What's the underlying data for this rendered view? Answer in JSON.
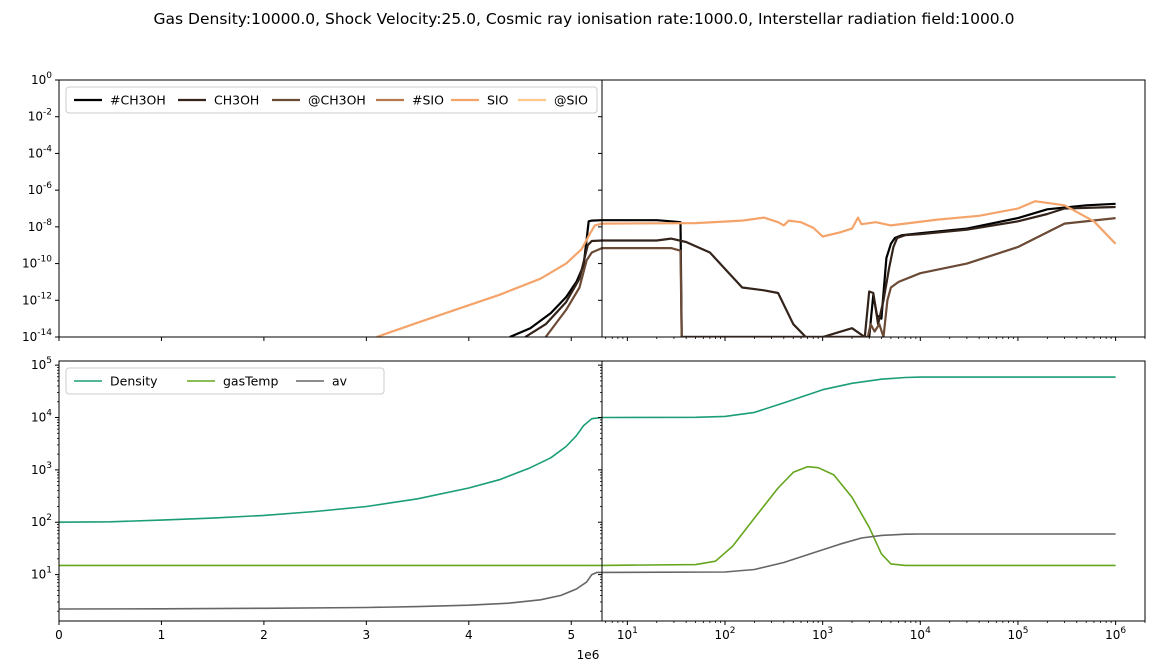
{
  "figure": {
    "title": "Gas Density:10000.0, Shock Velocity:25.0, Cosmic ray ionisation rate:1000.0, Interstellar radiation field:1000.0",
    "x_offset_label": "1e6"
  },
  "chart_data": [
    {
      "type": "line",
      "panel": "top-left",
      "xscale": "linear",
      "yscale": "log",
      "xlim": [
        0,
        5300000
      ],
      "ylim": [
        1e-14,
        1
      ],
      "x_ticks": [
        0,
        1000000,
        2000000,
        3000000,
        4000000,
        5000000
      ],
      "x_tick_labels": [],
      "y_ticks": [
        1e-14,
        1e-12,
        1e-10,
        1e-08,
        1e-06,
        0.0001,
        0.01,
        1
      ],
      "y_tick_labels": [
        "10^-14",
        "10^-12",
        "10^-10",
        "10^-8",
        "10^-6",
        "10^-4",
        "10^-2",
        "10^0"
      ],
      "legend": {
        "position": "upper-left",
        "ncol": 6
      },
      "series": [
        {
          "name": "#CH3OH",
          "color": "#000000",
          "width": 2.2,
          "points": [
            [
              4400000,
              1e-14
            ],
            [
              4600000,
              3e-14
            ],
            [
              4800000,
              2e-13
            ],
            [
              4950000,
              1.5e-12
            ],
            [
              5050000,
              1e-11
            ],
            [
              5120000,
              8e-11
            ],
            [
              5170000,
              2e-08
            ],
            [
              5200000,
              2.2e-08
            ],
            [
              5300000,
              2.3e-08
            ]
          ]
        },
        {
          "name": "CH3OH",
          "color": "#33231a",
          "width": 2.2,
          "points": [
            [
              4550000,
              1e-14
            ],
            [
              4750000,
              5e-14
            ],
            [
              4950000,
              8e-13
            ],
            [
              5080000,
              1.5e-11
            ],
            [
              5160000,
              1e-09
            ],
            [
              5200000,
              1.7e-09
            ],
            [
              5300000,
              1.8e-09
            ]
          ]
        },
        {
          "name": "@CH3OH",
          "color": "#6b4a36",
          "width": 2.2,
          "points": [
            [
              4750000,
              1e-14
            ],
            [
              4950000,
              3e-13
            ],
            [
              5080000,
              5e-12
            ],
            [
              5150000,
              1.5e-10
            ],
            [
              5200000,
              4e-10
            ],
            [
              5300000,
              7e-10
            ]
          ]
        },
        {
          "name": "#SIO",
          "color": "#b8774c",
          "width": 2.2,
          "points": []
        },
        {
          "name": "SIO",
          "color": "#f4a46b",
          "width": 2.2,
          "points": [
            [
              3100000,
              1e-14
            ],
            [
              3500000,
              6e-14
            ],
            [
              3900000,
              3.5e-13
            ],
            [
              4300000,
              2e-12
            ],
            [
              4700000,
              1.5e-11
            ],
            [
              4950000,
              1e-10
            ],
            [
              5100000,
              6e-10
            ],
            [
              5180000,
              4e-09
            ],
            [
              5230000,
              1.2e-08
            ],
            [
              5300000,
              1.5e-08
            ]
          ]
        },
        {
          "name": "@SIO",
          "color": "#fcc98a",
          "width": 2.2,
          "points": []
        }
      ]
    },
    {
      "type": "line",
      "panel": "top-right",
      "xscale": "log",
      "yscale": "log",
      "xlim": [
        5.5,
        2000000
      ],
      "ylim": [
        1e-14,
        1
      ],
      "x_ticks": [
        10,
        100,
        1000,
        10000,
        100000,
        1000000
      ],
      "x_tick_labels": [],
      "series": [
        {
          "name": "#CH3OH",
          "color": "#000000",
          "width": 2.2,
          "points": [
            [
              5.5,
              2.3e-08
            ],
            [
              20,
              2.3e-08
            ],
            [
              28,
              2e-08
            ],
            [
              35,
              1.8e-08
            ],
            [
              36,
              1e-14
            ],
            [
              3000,
              1e-14
            ],
            [
              3300,
              2e-12
            ],
            [
              3600,
              1.5e-13
            ],
            [
              4000,
              1e-13
            ],
            [
              4500,
              2e-10
            ],
            [
              5000,
              1.2e-09
            ],
            [
              5500,
              2.5e-09
            ],
            [
              6500,
              3.5e-09
            ],
            [
              10000,
              4.5e-09
            ],
            [
              30000,
              8e-09
            ],
            [
              100000,
              3e-08
            ],
            [
              200000,
              9e-08
            ],
            [
              500000,
              1.5e-07
            ],
            [
              1000000,
              1.8e-07
            ]
          ]
        },
        {
          "name": "CH3OH",
          "color": "#33231a",
          "width": 2.2,
          "points": [
            [
              5.5,
              1.8e-09
            ],
            [
              20,
              1.8e-09
            ],
            [
              28,
              2.3e-09
            ],
            [
              40,
              1.5e-09
            ],
            [
              70,
              4e-10
            ],
            [
              110,
              3e-11
            ],
            [
              150,
              5e-12
            ],
            [
              250,
              3.5e-12
            ],
            [
              350,
              2.5e-12
            ],
            [
              500,
              5e-14
            ],
            [
              700,
              8e-15
            ],
            [
              1000,
              1e-14
            ],
            [
              2000,
              3e-14
            ],
            [
              2700,
              1e-14
            ],
            [
              3000,
              3e-12
            ],
            [
              3300,
              2.5e-12
            ],
            [
              3700,
              5e-14
            ],
            [
              4200,
              1e-12
            ],
            [
              4800,
              6e-11
            ],
            [
              5300,
              8e-10
            ],
            [
              5800,
              2.5e-09
            ],
            [
              7000,
              3.5e-09
            ],
            [
              10000,
              4e-09
            ],
            [
              30000,
              7e-09
            ],
            [
              100000,
              2e-08
            ],
            [
              200000,
              5e-08
            ],
            [
              300000,
              1e-07
            ],
            [
              1000000,
              1.2e-07
            ]
          ]
        },
        {
          "name": "@CH3OH",
          "color": "#6b4a36",
          "width": 2.2,
          "points": [
            [
              5.5,
              7e-10
            ],
            [
              28,
              7e-10
            ],
            [
              35,
              5e-10
            ],
            [
              36,
              1e-14
            ],
            [
              2900,
              1e-14
            ],
            [
              3100,
              5e-14
            ],
            [
              3400,
              2e-14
            ],
            [
              3800,
              5e-14
            ],
            [
              4200,
              1e-14
            ],
            [
              4600,
              1e-12
            ],
            [
              5000,
              5e-12
            ],
            [
              6000,
              1e-11
            ],
            [
              10000,
              3e-11
            ],
            [
              30000,
              1e-10
            ],
            [
              100000,
              8e-10
            ],
            [
              300000,
              1.5e-08
            ],
            [
              1000000,
              3e-08
            ]
          ]
        },
        {
          "name": "SIO",
          "color": "#f4a46b",
          "width": 2.2,
          "points": [
            [
              5.5,
              1.5e-08
            ],
            [
              50,
              1.6e-08
            ],
            [
              150,
              2.2e-08
            ],
            [
              250,
              3.2e-08
            ],
            [
              350,
              1.8e-08
            ],
            [
              400,
              1.2e-08
            ],
            [
              450,
              2.2e-08
            ],
            [
              600,
              1.8e-08
            ],
            [
              800,
              9e-09
            ],
            [
              1000,
              3e-09
            ],
            [
              1500,
              5e-09
            ],
            [
              2000,
              8e-09
            ],
            [
              2300,
              3.2e-08
            ],
            [
              2500,
              1.4e-08
            ],
            [
              3500,
              1.8e-08
            ],
            [
              5000,
              1.2e-08
            ],
            [
              7000,
              1.5e-08
            ],
            [
              15000,
              2.5e-08
            ],
            [
              40000,
              4e-08
            ],
            [
              100000,
              1e-07
            ],
            [
              150000,
              2.5e-07
            ],
            [
              300000,
              1.5e-07
            ],
            [
              600000,
              2e-08
            ],
            [
              1000000,
              1.2e-09
            ]
          ]
        }
      ]
    },
    {
      "type": "line",
      "panel": "bottom-left",
      "xscale": "linear",
      "yscale": "log",
      "xlim": [
        0,
        5300000
      ],
      "ylim": [
        1.3,
        120000
      ],
      "x_ticks": [
        0,
        1000000,
        2000000,
        3000000,
        4000000,
        5000000
      ],
      "x_tick_labels": [
        "0",
        "1",
        "2",
        "3",
        "4",
        "5"
      ],
      "y_ticks": [
        10,
        100,
        1000,
        10000,
        100000
      ],
      "y_tick_labels": [
        "10^1",
        "10^2",
        "10^3",
        "10^4",
        "10^5"
      ],
      "legend": {
        "position": "upper-left",
        "ncol": 3
      },
      "series": [
        {
          "name": "Density",
          "color": "#1b9e77",
          "width": 1.6,
          "points": [
            [
              0,
              100
            ],
            [
              500000,
              102
            ],
            [
              1000000,
              110
            ],
            [
              1500000,
              120
            ],
            [
              2000000,
              135
            ],
            [
              2500000,
              160
            ],
            [
              3000000,
              200
            ],
            [
              3500000,
              280
            ],
            [
              4000000,
              450
            ],
            [
              4300000,
              650
            ],
            [
              4600000,
              1100
            ],
            [
              4800000,
              1700
            ],
            [
              4950000,
              2800
            ],
            [
              5050000,
              4500
            ],
            [
              5120000,
              7000
            ],
            [
              5200000,
              9500
            ],
            [
              5300000,
              10000
            ]
          ]
        },
        {
          "name": "gasTemp",
          "color": "#66a61e",
          "width": 1.6,
          "points": [
            [
              0,
              15
            ],
            [
              5300000,
              15
            ]
          ]
        },
        {
          "name": "av",
          "color": "#666666",
          "width": 1.6,
          "points": [
            [
              0,
              2.2
            ],
            [
              1000000,
              2.22
            ],
            [
              2000000,
              2.27
            ],
            [
              3000000,
              2.35
            ],
            [
              3500000,
              2.45
            ],
            [
              4000000,
              2.6
            ],
            [
              4400000,
              2.85
            ],
            [
              4700000,
              3.3
            ],
            [
              4900000,
              4
            ],
            [
              5050000,
              5.3
            ],
            [
              5150000,
              7.2
            ],
            [
              5200000,
              10
            ],
            [
              5250000,
              11
            ],
            [
              5300000,
              11
            ]
          ]
        }
      ]
    },
    {
      "type": "line",
      "panel": "bottom-right",
      "xscale": "log",
      "yscale": "log",
      "xlim": [
        5.5,
        2000000
      ],
      "ylim": [
        1.3,
        120000
      ],
      "x_ticks": [
        10,
        100,
        1000,
        10000,
        100000,
        1000000
      ],
      "x_tick_labels": [
        "10^1",
        "10^2",
        "10^3",
        "10^4",
        "10^5",
        "10^6"
      ],
      "series": [
        {
          "name": "Density",
          "color": "#1b9e77",
          "width": 1.6,
          "points": [
            [
              5.5,
              10000
            ],
            [
              50,
              10100
            ],
            [
              100,
              10500
            ],
            [
              200,
              12500
            ],
            [
              400,
              19000
            ],
            [
              700,
              27000
            ],
            [
              1000,
              34000
            ],
            [
              2000,
              45000
            ],
            [
              4000,
              54000
            ],
            [
              7000,
              58000
            ],
            [
              10000,
              59000
            ],
            [
              100000,
              59000
            ],
            [
              1000000,
              59000
            ]
          ]
        },
        {
          "name": "gasTemp",
          "color": "#66a61e",
          "width": 1.6,
          "points": [
            [
              5.5,
              15
            ],
            [
              50,
              15.5
            ],
            [
              80,
              18
            ],
            [
              120,
              35
            ],
            [
              200,
              120
            ],
            [
              350,
              450
            ],
            [
              500,
              900
            ],
            [
              700,
              1150
            ],
            [
              900,
              1100
            ],
            [
              1300,
              800
            ],
            [
              2000,
              300
            ],
            [
              3000,
              80
            ],
            [
              4000,
              25
            ],
            [
              5000,
              16
            ],
            [
              7000,
              15
            ],
            [
              1000000,
              15
            ]
          ]
        },
        {
          "name": "av",
          "color": "#666666",
          "width": 1.6,
          "points": [
            [
              5.5,
              11
            ],
            [
              100,
              11.2
            ],
            [
              200,
              12.5
            ],
            [
              400,
              17
            ],
            [
              800,
              26
            ],
            [
              1500,
              38
            ],
            [
              2500,
              50
            ],
            [
              4000,
              56
            ],
            [
              7000,
              59
            ],
            [
              10000,
              59.5
            ],
            [
              1000000,
              59.5
            ]
          ]
        }
      ]
    }
  ]
}
